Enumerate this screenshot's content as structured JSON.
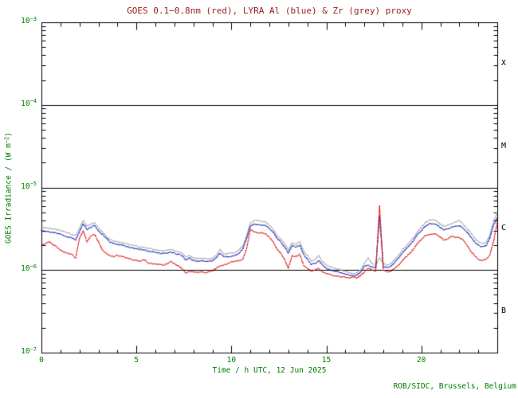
{
  "colors": {
    "title_text": "#9b1c1c",
    "axis_text": "#007d00",
    "frame": "#000000",
    "red_series": "#dd1111",
    "blue_series": "#1122bb",
    "grey_series": "#a0a0a0",
    "background": "#ffffff"
  },
  "chart_data": {
    "type": "line",
    "title": "GOES 0.1−0.8nm (red), LYRA Al (blue) & Zr (grey) proxy",
    "xlabel": "Time / h UTC, 12 Jun 2025",
    "ylabel": {
      "prefix": "GOES Irradiance / (W m",
      "sup": "−2",
      "suffix": ")"
    },
    "credit": "ROB/SIDC, Brussels, Belgium",
    "x_unit": "h UTC",
    "xlim": [
      0,
      24
    ],
    "x_major_ticks": [
      0,
      5,
      10,
      15,
      20
    ],
    "x_minor_tick_step_h": 1,
    "y_scale": "log",
    "y_tick_base": "10",
    "y_tick_exponents": [
      -3,
      -4,
      -5,
      -6,
      -7
    ],
    "hline_exponents": [
      -4,
      -5,
      -6
    ],
    "flare_classes": [
      {
        "label": "X",
        "log_center": -3.5
      },
      {
        "label": "M",
        "log_center": -4.5
      },
      {
        "label": "C",
        "log_center": -5.5
      },
      {
        "label": "B",
        "log_center": -6.5
      }
    ],
    "grid": false,
    "legend": "encoded in title",
    "value_unit": "1e-6 W m-2",
    "x_start_h": 0,
    "x_step_h": 0.2,
    "series": [
      {
        "name": "LYRA Zr proxy",
        "color_key": "grey_series",
        "values": [
          3.3,
          3.25,
          3.2,
          3.15,
          3.1,
          3.0,
          2.9,
          2.8,
          2.7,
          2.6,
          3.2,
          4.0,
          3.4,
          3.6,
          3.75,
          3.25,
          2.9,
          2.6,
          2.35,
          2.25,
          2.2,
          2.15,
          2.1,
          2.05,
          2.0,
          1.95,
          1.9,
          1.88,
          1.83,
          1.8,
          1.76,
          1.72,
          1.7,
          1.74,
          1.77,
          1.72,
          1.65,
          1.6,
          1.45,
          1.5,
          1.4,
          1.38,
          1.4,
          1.37,
          1.38,
          1.4,
          1.5,
          1.77,
          1.58,
          1.57,
          1.6,
          1.63,
          1.75,
          1.95,
          2.6,
          3.7,
          4.0,
          3.95,
          3.9,
          3.8,
          3.5,
          3.15,
          2.6,
          2.4,
          2.1,
          1.75,
          2.15,
          2.05,
          2.2,
          1.7,
          1.5,
          1.3,
          1.33,
          1.5,
          1.25,
          1.15,
          1.1,
          1.05,
          1.03,
          1.0,
          0.97,
          0.93,
          0.9,
          0.92,
          1.0,
          1.2,
          1.4,
          1.2,
          1.15,
          1.4,
          1.2,
          1.15,
          1.2,
          1.35,
          1.5,
          1.75,
          1.95,
          2.2,
          2.5,
          2.95,
          3.3,
          3.75,
          4.0,
          4.05,
          3.95,
          3.6,
          3.4,
          3.5,
          3.65,
          3.8,
          4.0,
          3.6,
          3.2,
          2.8,
          2.45,
          2.2,
          2.1,
          2.15,
          2.6,
          3.9,
          4.9
        ]
      },
      {
        "name": "LYRA Al proxy",
        "color_key": "blue_series",
        "values": [
          3.0,
          2.95,
          2.9,
          2.85,
          2.8,
          2.75,
          2.6,
          2.5,
          2.45,
          2.3,
          2.9,
          3.65,
          3.1,
          3.3,
          3.45,
          3.0,
          2.7,
          2.45,
          2.2,
          2.1,
          2.05,
          2.0,
          1.95,
          1.9,
          1.85,
          1.8,
          1.78,
          1.75,
          1.7,
          1.67,
          1.63,
          1.6,
          1.58,
          1.62,
          1.65,
          1.6,
          1.55,
          1.5,
          1.32,
          1.4,
          1.3,
          1.28,
          1.3,
          1.27,
          1.28,
          1.3,
          1.4,
          1.6,
          1.45,
          1.45,
          1.47,
          1.5,
          1.6,
          1.8,
          2.4,
          3.4,
          3.6,
          3.55,
          3.5,
          3.45,
          3.2,
          2.9,
          2.4,
          2.2,
          1.9,
          1.6,
          2.0,
          1.9,
          2.0,
          1.55,
          1.35,
          1.17,
          1.2,
          1.3,
          1.15,
          1.05,
          1.0,
          0.97,
          0.95,
          0.92,
          0.9,
          0.87,
          0.85,
          0.86,
          0.95,
          1.1,
          1.15,
          1.1,
          1.05,
          4.5,
          1.1,
          1.07,
          1.1,
          1.25,
          1.4,
          1.6,
          1.8,
          2.0,
          2.3,
          2.7,
          3.0,
          3.4,
          3.6,
          3.65,
          3.55,
          3.3,
          3.05,
          3.15,
          3.3,
          3.4,
          3.45,
          3.2,
          2.9,
          2.5,
          2.2,
          2.0,
          1.9,
          1.95,
          2.4,
          3.5,
          4.3
        ]
      },
      {
        "name": "GOES 0.1-0.8nm",
        "color_key": "red_series",
        "values": [
          2.0,
          2.1,
          2.2,
          2.05,
          1.9,
          1.75,
          1.65,
          1.6,
          1.55,
          1.4,
          2.4,
          3.0,
          2.2,
          2.6,
          2.7,
          2.2,
          1.75,
          1.6,
          1.5,
          1.45,
          1.5,
          1.47,
          1.42,
          1.38,
          1.33,
          1.3,
          1.28,
          1.35,
          1.22,
          1.2,
          1.18,
          1.17,
          1.15,
          1.18,
          1.28,
          1.2,
          1.12,
          1.05,
          0.92,
          0.95,
          0.95,
          0.93,
          0.95,
          0.93,
          0.95,
          0.98,
          1.05,
          1.12,
          1.15,
          1.2,
          1.25,
          1.28,
          1.3,
          1.35,
          1.8,
          3.1,
          2.9,
          2.8,
          2.85,
          2.75,
          2.5,
          2.2,
          1.8,
          1.6,
          1.35,
          1.05,
          1.5,
          1.45,
          1.55,
          1.15,
          1.05,
          0.97,
          1.0,
          1.05,
          0.95,
          0.9,
          0.88,
          0.85,
          0.85,
          0.83,
          0.82,
          0.8,
          0.82,
          0.8,
          0.85,
          0.95,
          1.05,
          1.0,
          0.97,
          6.0,
          1.0,
          0.95,
          0.97,
          1.05,
          1.15,
          1.3,
          1.45,
          1.6,
          1.8,
          2.1,
          2.35,
          2.6,
          2.7,
          2.75,
          2.7,
          2.5,
          2.3,
          2.4,
          2.55,
          2.5,
          2.45,
          2.3,
          2.0,
          1.7,
          1.5,
          1.35,
          1.3,
          1.35,
          1.5,
          2.2,
          3.8
        ]
      }
    ]
  }
}
